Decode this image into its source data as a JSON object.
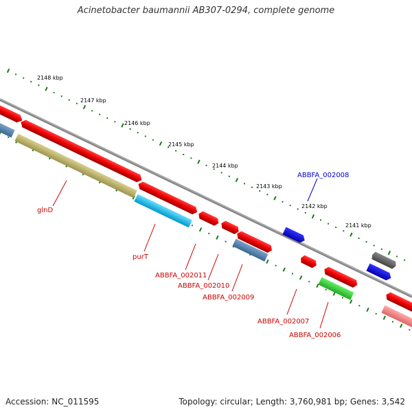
{
  "title": "Acinetobacter baumannii AB307-0294, complete genome",
  "footer": {
    "accession": "Accession: NC_011595",
    "summary": "Topology: circular; Length: 3,760,981 bp; Genes: 3,542"
  },
  "colors": {
    "backbone": "#888888",
    "tick": "#1a7a1a",
    "label_red": "#cc0000",
    "label_blue": "#0000cc"
  },
  "scale_labels": [
    "2148 kbp",
    "2147 kbp",
    "2146 kbp",
    "2145 kbp",
    "2144 kbp",
    "2143 kbp",
    "2142 kbp",
    "2141 kbp"
  ],
  "genes": [
    {
      "label": "glnD",
      "color": "#cc0000"
    },
    {
      "label": "purT",
      "color": "#cc0000"
    },
    {
      "label": "ABBFA_002011",
      "color": "#cc0000"
    },
    {
      "label": "ABBFA_002010",
      "color": "#cc0000"
    },
    {
      "label": "ABBFA_002009",
      "color": "#cc0000"
    },
    {
      "label": "ABBFA_002008",
      "color": "#0000cc"
    },
    {
      "label": "ABBFA_002007",
      "color": "#cc0000"
    },
    {
      "label": "ABBFA_002006",
      "color": "#cc0000"
    }
  ]
}
